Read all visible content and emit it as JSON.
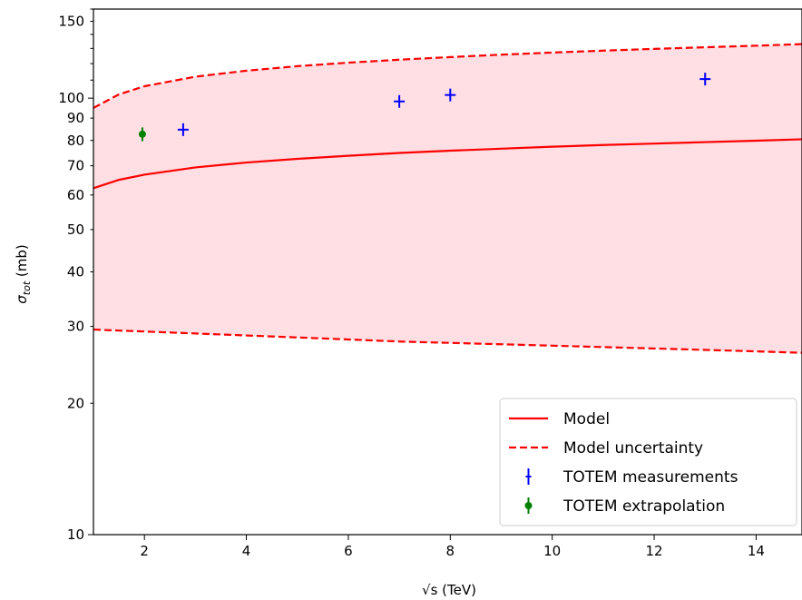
{
  "chart_data": {
    "type": "line",
    "xlabel": "√s (TeV)",
    "ylabel": "σ_tot (mb)",
    "xlim": [
      1,
      14.9
    ],
    "ylim": [
      10,
      160
    ],
    "yscale": "log",
    "grid": false,
    "legend_position": "bottom-right",
    "x_ticks": [
      2,
      4,
      6,
      8,
      10,
      12,
      14
    ],
    "y_ticks_labeled": [
      10,
      20,
      30,
      40,
      50,
      60,
      70,
      80,
      90,
      100,
      150
    ],
    "series": [
      {
        "name": "Model",
        "style": "solid",
        "color": "#ff0000",
        "x": [
          1,
          1.5,
          2,
          3,
          4,
          5,
          6,
          7,
          8,
          9,
          10,
          11,
          12,
          13,
          14,
          14.9
        ],
        "y": [
          62.2,
          65.0,
          66.8,
          69.4,
          71.2,
          72.6,
          73.8,
          74.9,
          75.8,
          76.6,
          77.4,
          78.1,
          78.7,
          79.3,
          79.9,
          80.5
        ]
      },
      {
        "name": "Model uncertainty",
        "style": "dashed",
        "color": "#ff0000",
        "upper": {
          "x": [
            1,
            1.5,
            2,
            3,
            4,
            5,
            6,
            7,
            8,
            9,
            10,
            11,
            12,
            13,
            14,
            14.9
          ],
          "y": [
            95,
            102,
            106.5,
            112,
            115.6,
            118.4,
            120.6,
            122.5,
            124.2,
            125.8,
            127.2,
            128.5,
            129.7,
            130.8,
            131.9,
            133
          ]
        },
        "lower": {
          "x": [
            1,
            2,
            3,
            4,
            5,
            6,
            7,
            8,
            9,
            10,
            11,
            12,
            13,
            14,
            14.9
          ],
          "y": [
            29.5,
            29.2,
            28.9,
            28.6,
            28.3,
            28.0,
            27.7,
            27.5,
            27.3,
            27.1,
            26.9,
            26.7,
            26.5,
            26.3,
            26.1
          ]
        }
      },
      {
        "name": "TOTEM measurements",
        "color": "#0000ff",
        "marker": "+",
        "points": [
          {
            "x": 2.76,
            "y": 84.7
          },
          {
            "x": 7.0,
            "y": 98.3
          },
          {
            "x": 8.0,
            "y": 101.7
          },
          {
            "x": 13.0,
            "y": 110.6
          }
        ]
      },
      {
        "name": "TOTEM extrapolation",
        "color": "#008000",
        "marker": "o",
        "points": [
          {
            "x": 1.96,
            "y": 82.7,
            "err": 3.0
          }
        ]
      }
    ],
    "band_fill_color": "#ffdfe3"
  }
}
